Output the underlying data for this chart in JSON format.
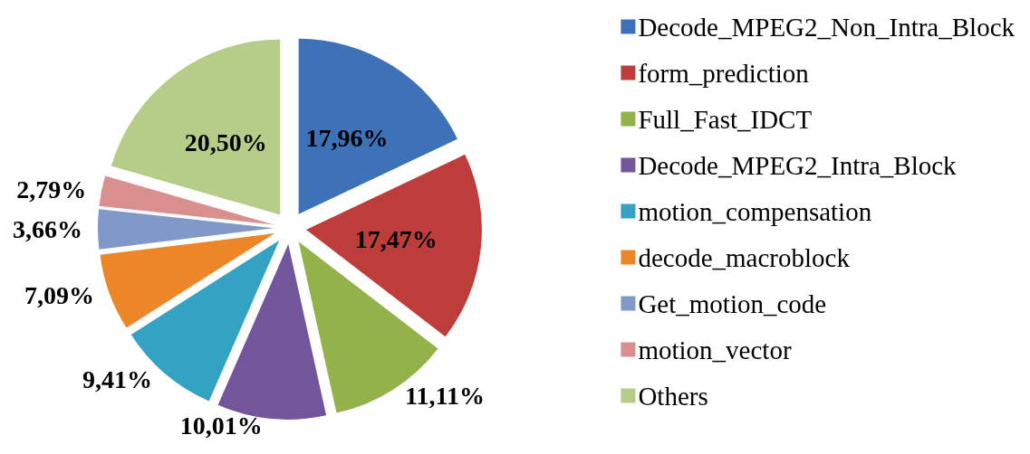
{
  "chart_data": {
    "type": "pie",
    "categories": [
      "Decode_MPEG2_Non_Intra_Block",
      "form_prediction",
      "Full_Fast_IDCT",
      "Decode_MPEG2_Intra_Block",
      "motion_compensation",
      "decode_macroblock",
      "Get_motion_code",
      "motion_vector",
      "Others"
    ],
    "values": [
      17.96,
      17.47,
      11.11,
      10.01,
      9.41,
      7.09,
      3.66,
      2.79,
      20.5
    ],
    "colors": [
      "#3d72b8",
      "#bd3d3b",
      "#93b34a",
      "#72559b",
      "#34a2c2",
      "#ec8629",
      "#8099c8",
      "#d98f8d",
      "#b5cd88"
    ],
    "value_labels": [
      "17,96%",
      "17,47%",
      "11,11%",
      "10,01%",
      "9,41%",
      "7,09%",
      "3,66%",
      "2,79%",
      "20,50%"
    ],
    "legend": "right"
  }
}
